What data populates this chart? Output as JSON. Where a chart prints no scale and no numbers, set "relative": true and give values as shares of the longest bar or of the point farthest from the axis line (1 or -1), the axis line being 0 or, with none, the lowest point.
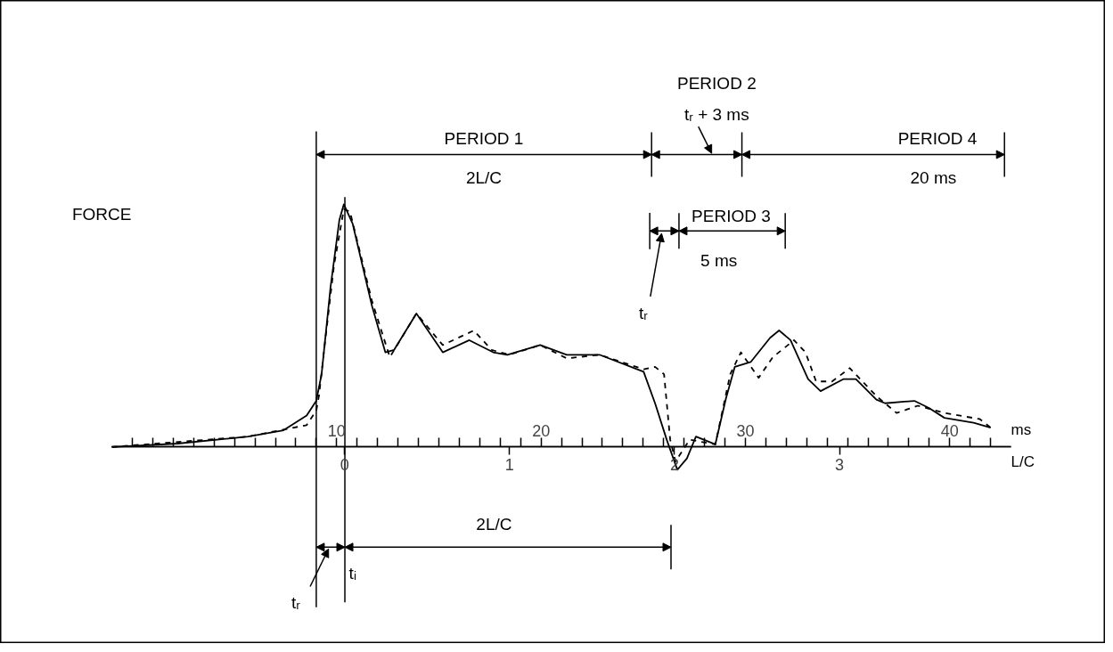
{
  "chart_data": {
    "type": "line",
    "relative": true,
    "ylabel": "FORCE",
    "xlabel": "ms",
    "x2label": "L/C",
    "xlim": [
      -1,
      43
    ],
    "xticks": [
      {
        "value": 0,
        "label": null
      },
      {
        "value": 1,
        "label": null
      },
      {
        "value": 2,
        "label": null
      },
      {
        "value": 3,
        "label": null
      },
      {
        "value": 4,
        "label": null
      },
      {
        "value": 5,
        "label": null
      },
      {
        "value": 6,
        "label": null
      },
      {
        "value": 7,
        "label": null
      },
      {
        "value": 8,
        "label": null
      },
      {
        "value": 9,
        "label": null
      },
      10,
      {
        "value": 11,
        "label": null
      },
      {
        "value": 12,
        "label": null
      },
      {
        "value": 13,
        "label": null
      },
      {
        "value": 14,
        "label": null
      },
      {
        "value": 15,
        "label": null
      },
      {
        "value": 16,
        "label": null
      },
      {
        "value": 17,
        "label": null
      },
      {
        "value": 18,
        "label": null
      },
      {
        "value": 19,
        "label": null
      },
      20,
      {
        "value": 21,
        "label": null
      },
      {
        "value": 22,
        "label": null
      },
      {
        "value": 23,
        "label": null
      },
      {
        "value": 24,
        "label": null
      },
      {
        "value": 25,
        "label": null
      },
      {
        "value": 26,
        "label": null
      },
      {
        "value": 27,
        "label": null
      },
      {
        "value": 28,
        "label": null
      },
      {
        "value": 29,
        "label": null
      },
      30,
      {
        "value": 31,
        "label": null
      },
      {
        "value": 32,
        "label": null
      },
      {
        "value": 33,
        "label": null
      },
      {
        "value": 34,
        "label": null
      },
      {
        "value": 35,
        "label": null
      },
      {
        "value": 36,
        "label": null
      },
      {
        "value": 37,
        "label": null
      },
      {
        "value": 38,
        "label": null
      },
      {
        "value": 39,
        "label": null
      },
      40,
      {
        "value": 41,
        "label": null
      },
      {
        "value": 42,
        "label": null
      }
    ],
    "x2lim": [
      -1.41,
      4.04
    ],
    "x2ticks": [
      0,
      1,
      2,
      3
    ],
    "marker": "none",
    "series": [
      {
        "color": "#000000",
        "line_style": "solid",
        "x": [
          -1.0,
          2.21,
          5.67,
          7.4,
          8.53,
          9.0,
          9.26,
          9.7,
          10.13,
          10.35,
          10.78,
          11.73,
          12.38,
          12.81,
          13.9,
          15.19,
          16.49,
          17.66,
          18.35,
          19.96,
          21.26,
          22.86,
          25.02,
          25.58,
          26.15,
          26.67,
          27.14,
          27.58,
          28.53,
          29.05,
          29.48,
          30.26,
          31.21,
          31.65,
          32.21,
          33.07,
          33.68,
          34.81,
          35.41,
          36.41,
          36.84,
          38.27,
          39.0,
          39.74,
          41.17,
          42.0
        ],
        "values": [
          0,
          0.014,
          0.043,
          0.069,
          0.13,
          0.19,
          0.3,
          0.66,
          0.935,
          1.0,
          0.92,
          0.58,
          0.39,
          0.4,
          0.55,
          0.39,
          0.44,
          0.39,
          0.38,
          0.42,
          0.38,
          0.38,
          0.31,
          0.18,
          0.03,
          -0.094,
          -0.047,
          0.043,
          0.011,
          0.2,
          0.33,
          0.35,
          0.45,
          0.48,
          0.44,
          0.28,
          0.23,
          0.28,
          0.28,
          0.195,
          0.18,
          0.19,
          0.16,
          0.12,
          0.1,
          0.08
        ]
      },
      {
        "color": "#000000",
        "line_style": "dashed",
        "x": [
          -1.0,
          5.67,
          8.53,
          9.0,
          9.13,
          9.44,
          9.87,
          10.35,
          10.65,
          11.73,
          12.6,
          13.9,
          15.19,
          16.71,
          17.58,
          18.44,
          19.96,
          21.26,
          22.86,
          25.02,
          25.58,
          26.02,
          26.32,
          26.58,
          27.27,
          28.53,
          29.26,
          29.78,
          30.65,
          31.34,
          32.38,
          32.94,
          33.46,
          34.24,
          35.11,
          36.41,
          37.4,
          38.44,
          39.74,
          41.47,
          42.0
        ],
        "values": [
          0,
          0.043,
          0.09,
          0.15,
          0.21,
          0.44,
          0.75,
          0.98,
          0.97,
          0.6,
          0.37,
          0.55,
          0.42,
          0.48,
          0.4,
          0.38,
          0.42,
          0.365,
          0.38,
          0.32,
          0.33,
          0.3,
          0.03,
          -0.06,
          0.03,
          0.011,
          0.3,
          0.39,
          0.285,
          0.37,
          0.44,
          0.39,
          0.27,
          0.27,
          0.325,
          0.21,
          0.14,
          0.17,
          0.14,
          0.115,
          0.08
        ]
      }
    ],
    "ref_lines": [
      {
        "axis": "x",
        "value": 9.0,
        "label": null
      },
      {
        "axis": "x",
        "value": 10.4,
        "label": "tᵢ"
      },
      {
        "axis": "x",
        "value": 25.32,
        "label": null
      }
    ],
    "annotations": [
      "PERIOD 1",
      "2L/C",
      "PERIOD 2",
      "tᵣ + 3 ms",
      "PERIOD 4",
      "20 ms",
      "PERIOD 3",
      "5 ms",
      "tᵣ",
      "tᵣ",
      "2L/C"
    ]
  }
}
